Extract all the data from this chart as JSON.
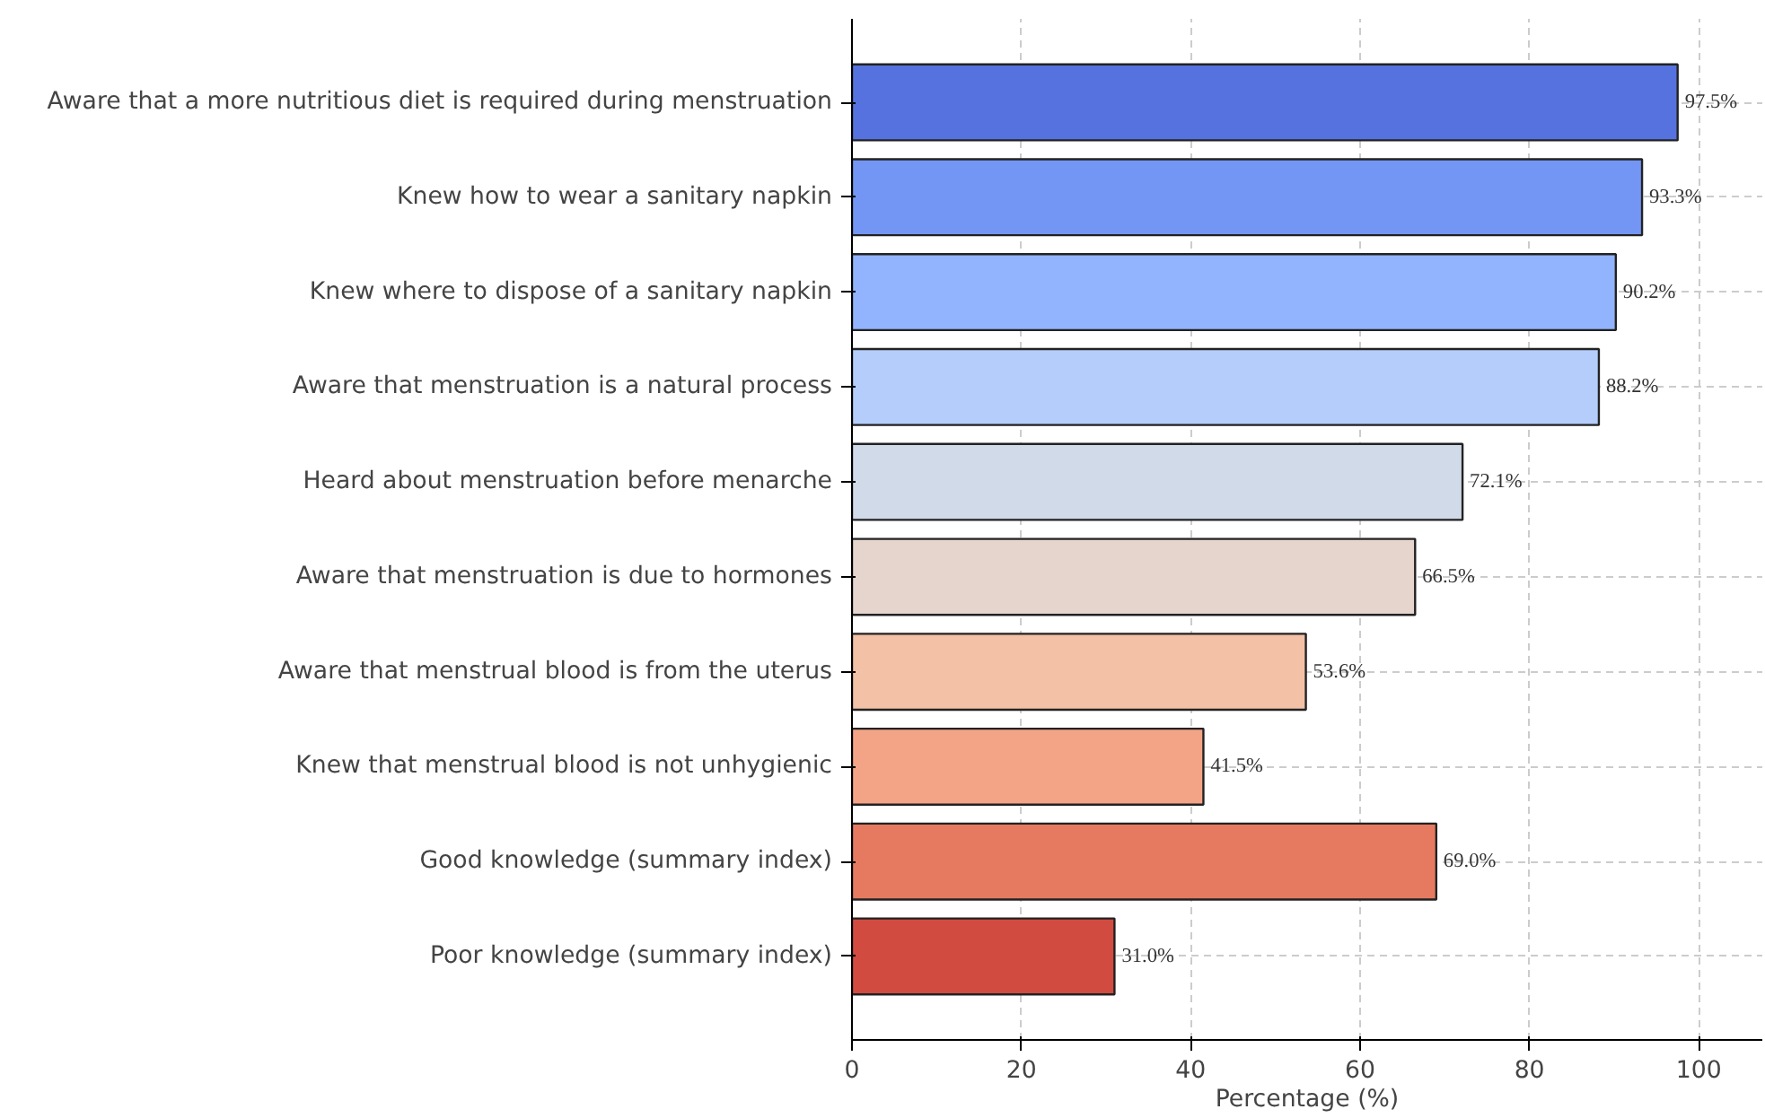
{
  "chart_data": {
    "type": "bar",
    "orientation": "horizontal",
    "xlabel": "Percentage (%)",
    "categories": [
      "Aware that a more nutritious diet is required during menstruation",
      "Knew how to wear a sanitary napkin",
      "Knew where to dispose of a sanitary napkin",
      "Aware that menstruation is a natural process",
      "Heard about menstruation before menarche",
      "Aware that menstruation is due to hormones",
      "Aware that menstrual blood is from the uterus",
      "Knew that menstrual blood is not unhygienic",
      "Good knowledge (summary index)",
      "Poor knowledge (summary index)"
    ],
    "values": [
      97.5,
      93.3,
      90.2,
      88.2,
      72.1,
      66.5,
      53.6,
      41.5,
      69.0,
      31.0
    ],
    "value_labels": [
      "97.5%",
      "93.3%",
      "90.2%",
      "88.2%",
      "72.1%",
      "66.5%",
      "53.6%",
      "41.5%",
      "69.0%",
      "31.0%"
    ],
    "colors": [
      "#5572df",
      "#7396f5",
      "#92b4fe",
      "#b4cdfa",
      "#d0dae8",
      "#e6d5cd",
      "#f2c1a6",
      "#f4a486",
      "#e67a61",
      "#d24b40"
    ],
    "xlim": [
      0,
      107.5
    ],
    "xticks": [
      0,
      20,
      40,
      60,
      80,
      100
    ],
    "grid": true
  }
}
